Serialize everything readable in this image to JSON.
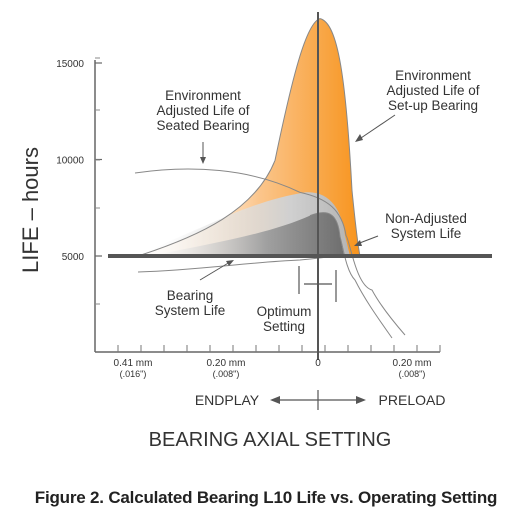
{
  "chart_data": {
    "type": "area",
    "ylabel": "LIFE – hours",
    "yticks": [
      "5000",
      "10000",
      "15000"
    ],
    "y_values": [
      5000,
      10000,
      15000
    ],
    "ylim": [
      0,
      17500
    ],
    "xticks": [
      {
        "label": "0.41 mm",
        "sub": "(.016\")"
      },
      {
        "label": "0.20 mm",
        "sub": "(.008\")"
      },
      {
        "label": "0",
        "sub": ""
      },
      {
        "label": "0.20 mm",
        "sub": "(.008\")"
      }
    ],
    "xlabel": "BEARING AXIAL SETTING",
    "direction_left": "ENDPLAY",
    "direction_right": "PRELOAD",
    "grid": false,
    "series": [
      {
        "name": "Environment Adjusted Life of Set-up Bearing",
        "color": "#f7941d",
        "peak_y": 17300
      },
      {
        "name": "Environment Adjusted Life of Seated Bearing",
        "color": "#bfbfbf",
        "peak_y": 8400
      },
      {
        "name": "Non-Adjusted System Life",
        "color": "#7a7a7a",
        "peak_y": 7300
      },
      {
        "name": "Bearing System Life",
        "color": "#c8c8c8",
        "peak_y": 5000
      }
    ],
    "annotations": [
      {
        "key": "setup",
        "lines": [
          "Environment",
          "Adjusted Life of",
          "Set-up Bearing"
        ]
      },
      {
        "key": "seated",
        "lines": [
          "Environment",
          "Adjusted Life of",
          "Seated Bearing"
        ]
      },
      {
        "key": "nonadj",
        "lines": [
          "Non-Adjusted",
          "System Life"
        ]
      },
      {
        "key": "system",
        "lines": [
          "Bearing",
          "System Life"
        ]
      },
      {
        "key": "optimum",
        "lines": [
          "Optimum",
          "Setting"
        ]
      }
    ]
  },
  "caption": "Figure 2. Calculated Bearing L10 Life vs. Operating Setting"
}
